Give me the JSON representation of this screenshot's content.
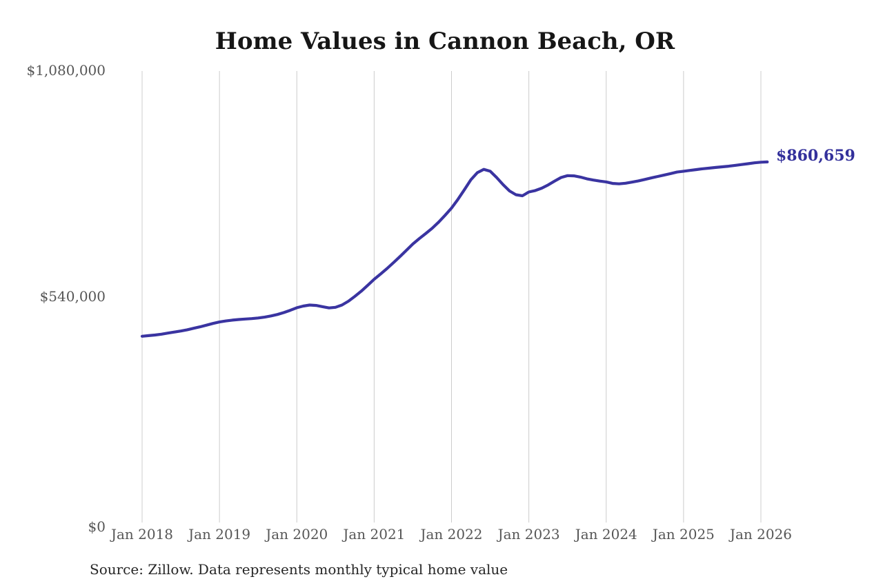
{
  "page": {
    "source_note": "Source: Zillow. Data represents monthly typical home value"
  },
  "colors": {
    "background": "#ffffff",
    "title": "#161616",
    "axis_label": "#565656",
    "grid": "#cccccc",
    "line": "#3a34a1",
    "end_label": "#33309b",
    "source": "#262626"
  },
  "chart_data": {
    "type": "line",
    "title": "Home Values in Cannon Beach, OR",
    "series_name": "Monthly typical home value",
    "frequency": "monthly",
    "x_start_label": "Jan 2018",
    "x_end_label": "Feb 2026",
    "x_tick_labels": [
      "Jan 2018",
      "Jan 2019",
      "Jan 2020",
      "Jan 2021",
      "Jan 2022",
      "Jan 2023",
      "Jan 2024",
      "Jan 2025",
      "Jan 2026"
    ],
    "y_ticks": [
      {
        "value": 0,
        "label": "$0"
      },
      {
        "value": 540000,
        "label": "$540,000"
      },
      {
        "value": 1080000,
        "label": "$1,080,000"
      }
    ],
    "ylim": [
      0,
      1080000
    ],
    "grid": "vertical-only",
    "legend": "none",
    "end_label": "$860,659",
    "end_value": 860659,
    "values": [
      445000,
      446500,
      448000,
      450000,
      452500,
      455000,
      457500,
      460500,
      464000,
      467500,
      471500,
      475500,
      479000,
      481500,
      483500,
      485000,
      486000,
      487000,
      488500,
      490500,
      493500,
      497000,
      501500,
      507000,
      513000,
      517000,
      519500,
      518500,
      515500,
      512500,
      514000,
      519500,
      528500,
      540000,
      552500,
      566500,
      581000,
      593500,
      606500,
      620500,
      635000,
      650000,
      665000,
      678000,
      690000,
      702500,
      717000,
      733500,
      750500,
      771500,
      794500,
      818000,
      835000,
      843000,
      838500,
      823500,
      806500,
      791500,
      782500,
      780000,
      789000,
      792500,
      798000,
      806000,
      815000,
      823500,
      828000,
      827500,
      824500,
      820500,
      817500,
      815000,
      813000,
      809500,
      808500,
      810000,
      812500,
      815500,
      819000,
      822500,
      826000,
      829500,
      833000,
      836500,
      838500,
      840500,
      842500,
      844500,
      846000,
      847500,
      849000,
      850500,
      852500,
      854500,
      856500,
      858500,
      860000,
      860659
    ]
  }
}
